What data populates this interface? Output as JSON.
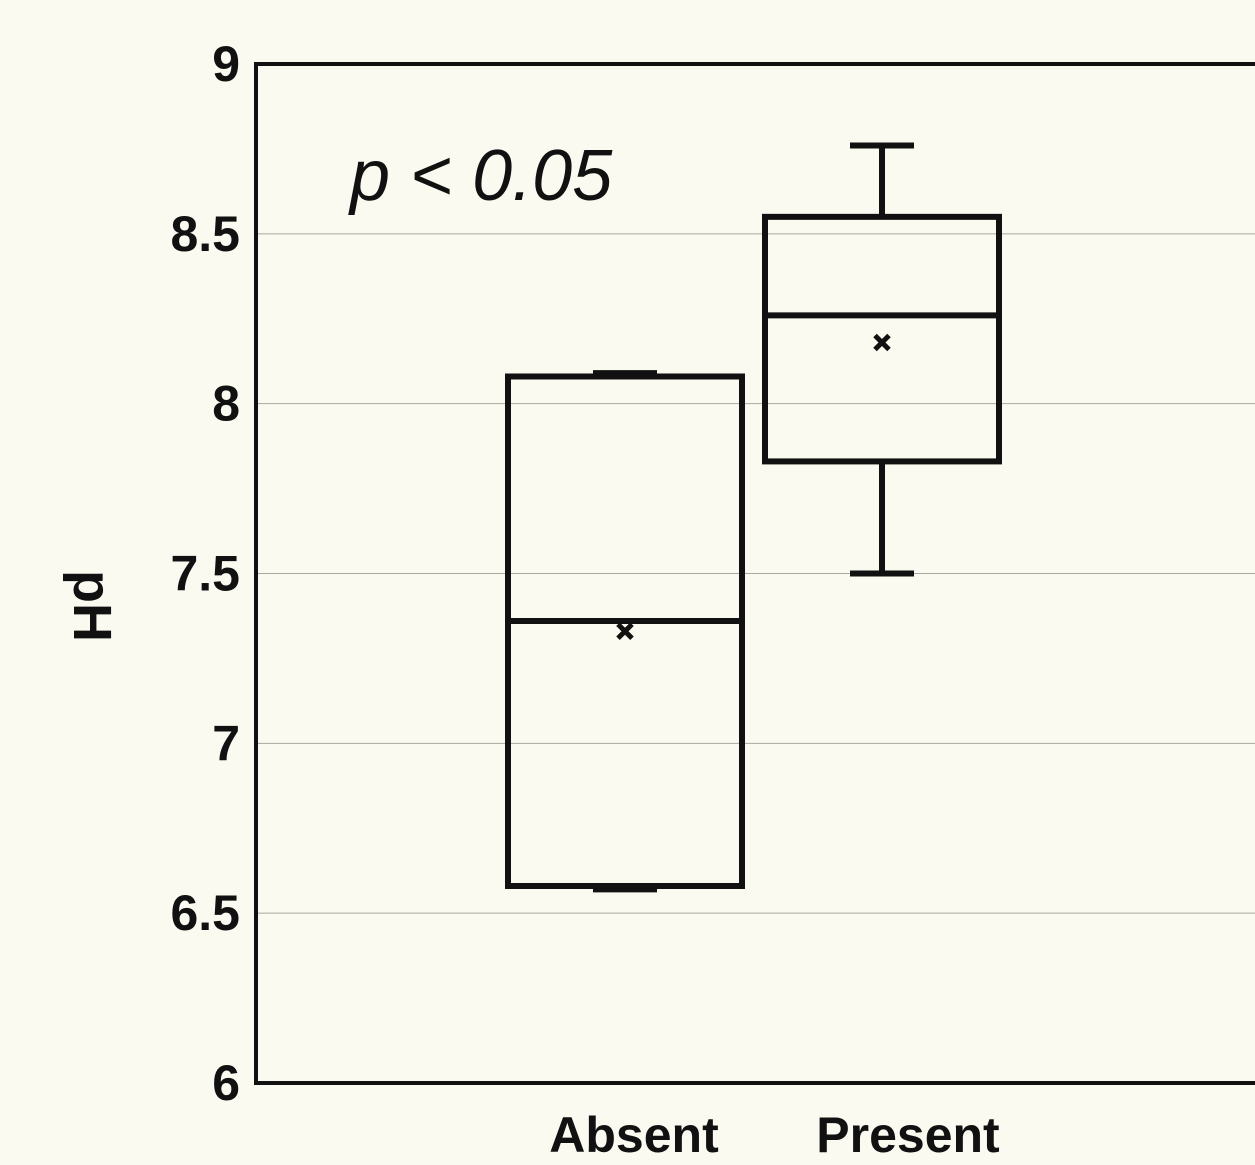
{
  "chart_data": {
    "type": "box",
    "ylabel": "pH",
    "xlabel": "",
    "ylim": [
      6,
      9
    ],
    "yticks": [
      "6",
      "6.5",
      "7",
      "7.5",
      "8",
      "8.5",
      "9"
    ],
    "grid": true,
    "annotation": "p < 0.05",
    "categories": [
      "Absent",
      "Present"
    ],
    "boxes": [
      {
        "category": "Absent",
        "whisker_low": 6.57,
        "q1": 6.58,
        "median": 7.36,
        "q3": 8.08,
        "whisker_high": 8.09,
        "mean": 7.33
      },
      {
        "category": "Present",
        "whisker_low": 7.5,
        "q1": 7.83,
        "median": 8.26,
        "q3": 8.55,
        "whisker_high": 8.76,
        "mean": 8.18
      }
    ]
  }
}
